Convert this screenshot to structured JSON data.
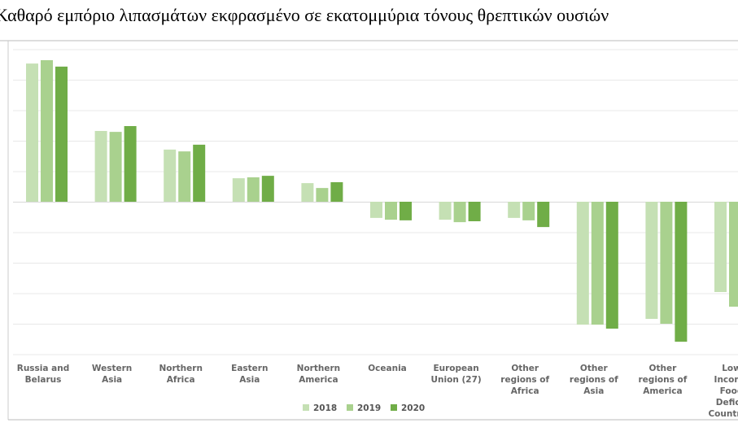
{
  "chart_data": {
    "type": "bar",
    "title": "Καθαρό εμπόριο λιπασμάτων εκφρασμένο σε εκατομμύρια τόνους θρεπτικών ουσιών",
    "xlabel": "",
    "ylabel": "",
    "y_units_note": "values estimated in gridline steps; axis tick labels cropped out of view",
    "ylim": [
      -5,
      5
    ],
    "grid": true,
    "legend_position": "bottom",
    "categories": [
      [
        "Russia and",
        "Belarus"
      ],
      [
        "Western",
        "Asia"
      ],
      [
        "Northern",
        "Africa"
      ],
      [
        "Eastern",
        "Asia"
      ],
      [
        "Northern",
        "America"
      ],
      [
        "Oceania"
      ],
      [
        "European",
        "Union (27)"
      ],
      [
        "Other",
        "regions of",
        "Africa"
      ],
      [
        "Other",
        "regions of",
        "Asia"
      ],
      [
        "Other",
        "regions of",
        "America"
      ],
      [
        "Low",
        "Income",
        "Food",
        "Deficit",
        "Countries"
      ]
    ],
    "series": [
      {
        "name": "2018",
        "color": "#c5e0b4",
        "values": [
          4.53,
          2.32,
          1.71,
          0.77,
          0.61,
          -0.53,
          -0.59,
          -0.53,
          -4.03,
          -3.84,
          -2.96
        ]
      },
      {
        "name": "2019",
        "color": "#a9d18e",
        "values": [
          4.64,
          2.29,
          1.65,
          0.8,
          0.45,
          -0.59,
          -0.67,
          -0.61,
          -4.03,
          -4.0,
          -3.44
        ]
      },
      {
        "name": "2020",
        "color": "#70ad47",
        "values": [
          4.43,
          2.48,
          1.87,
          0.85,
          0.64,
          -0.61,
          -0.64,
          -0.83,
          -4.16,
          -4.59,
          null
        ]
      }
    ]
  }
}
